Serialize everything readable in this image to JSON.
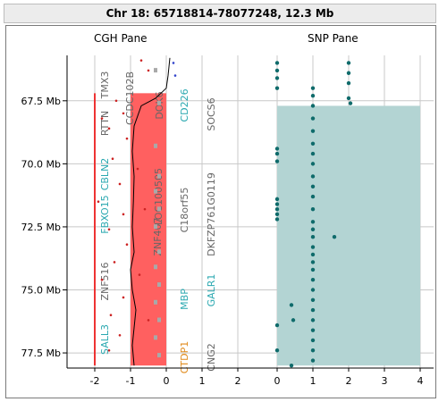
{
  "title": "Chr 18: 65718814-78077248, 12.3 Mb",
  "panes": {
    "cgh_label": "CGH Pane",
    "snp_label": "SNP Pane"
  },
  "y_axis": {
    "ticks": [
      "67.5 Mb",
      "70.0 Mb",
      "72.5 Mb",
      "75.0 Mb",
      "77.5 Mb"
    ]
  },
  "x_axis": {
    "cgh_ticks": [
      "-2",
      "-1",
      "0",
      "1",
      "2"
    ],
    "snp_ticks": [
      "0",
      "1",
      "2",
      "3",
      "4"
    ]
  },
  "genes": [
    {
      "label": "TMX3",
      "color": "#666666"
    },
    {
      "label": "RTTN",
      "color": "#666666"
    },
    {
      "label": "CCDC102B",
      "color": "#666666"
    },
    {
      "label": "DOK6",
      "color": "#666666"
    },
    {
      "label": "CD226",
      "color": "#2aa8b0"
    },
    {
      "label": "SOCS6",
      "color": "#666666"
    },
    {
      "label": "CBLN2",
      "color": "#2aa8b0"
    },
    {
      "label": "FBXO15",
      "color": "#2aa8b0"
    },
    {
      "label": "ZNF407",
      "color": "#666666"
    },
    {
      "label": "LOC100505",
      "color": "#666666"
    },
    {
      "label": "C18orf55",
      "color": "#666666"
    },
    {
      "label": "DKFZP761G0119",
      "color": "#666666"
    },
    {
      "label": "ZNF516",
      "color": "#666666"
    },
    {
      "label": "MBP",
      "color": "#2aa8b0"
    },
    {
      "label": "GALR1",
      "color": "#2aa8b0"
    },
    {
      "label": "SALL3",
      "color": "#2aa8b0"
    },
    {
      "label": "CTDP1",
      "color": "#e08a1a"
    },
    {
      "label": "CNG2",
      "color": "#666666"
    }
  ],
  "colors": {
    "cgh_region": "#ff6060",
    "cgh_line": "#ee3333",
    "snp_region": "#b3d4d3",
    "snp_point": "#0f6b6b",
    "grid": "#c8c8c8"
  },
  "chart_data": [
    {
      "type": "scatter",
      "panel": "CGH",
      "ylabel": "",
      "xlabel": "",
      "xlim": [
        -2.5,
        3.5
      ],
      "ylim": [
        65.7,
        78.1
      ],
      "region": {
        "x_from": -1.0,
        "x_to": 0.0,
        "y_from": 67.2,
        "y_to": 78.0
      },
      "vertical_line": {
        "x": -2.0,
        "y_from": 67.2,
        "y_to": 78.0
      },
      "log_ratio_profile": [
        [
          0.1,
          65.8
        ],
        [
          0.05,
          66.5
        ],
        [
          0.0,
          67.0
        ],
        [
          -0.3,
          67.4
        ],
        [
          -0.7,
          67.7
        ],
        [
          -0.9,
          68.5
        ],
        [
          -0.95,
          69.5
        ],
        [
          -0.9,
          70.5
        ],
        [
          -0.92,
          71.5
        ],
        [
          -0.95,
          72.5
        ],
        [
          -0.9,
          73.5
        ],
        [
          -1.0,
          74.2
        ],
        [
          -0.95,
          75.0
        ],
        [
          -0.85,
          75.8
        ],
        [
          -0.9,
          76.5
        ],
        [
          -0.95,
          77.2
        ],
        [
          -0.9,
          78.0
        ]
      ],
      "points": [
        [
          -0.7,
          65.9
        ],
        [
          -0.5,
          66.3
        ],
        [
          0.2,
          66.0
        ],
        [
          0.25,
          66.5
        ],
        [
          -1.4,
          67.5
        ],
        [
          -1.2,
          68.0
        ],
        [
          -1.6,
          68.6
        ],
        [
          -1.8,
          68.2
        ],
        [
          -1.1,
          69.0
        ],
        [
          -1.5,
          69.8
        ],
        [
          -1.3,
          70.8
        ],
        [
          -1.9,
          71.5
        ],
        [
          -1.2,
          72.0
        ],
        [
          -1.6,
          72.6
        ],
        [
          -1.1,
          73.2
        ],
        [
          -1.45,
          73.9
        ],
        [
          -1.8,
          74.6
        ],
        [
          -1.2,
          75.3
        ],
        [
          -1.55,
          76.0
        ],
        [
          -1.3,
          76.8
        ],
        [
          -1.6,
          77.4
        ],
        [
          -0.8,
          70.2
        ],
        [
          -0.6,
          71.8
        ],
        [
          -0.75,
          74.4
        ],
        [
          -0.5,
          76.2
        ]
      ]
    },
    {
      "type": "scatter",
      "panel": "SNP",
      "ylabel": "",
      "xlabel": "",
      "xlim": [
        0,
        4
      ],
      "ylim": [
        65.7,
        78.1
      ],
      "region": {
        "x_from": 0.0,
        "x_to": 4.0,
        "y_from": 67.7,
        "y_to": 78.0
      },
      "points": [
        [
          0,
          66.0
        ],
        [
          0,
          66.3
        ],
        [
          0,
          66.6
        ],
        [
          0,
          67.0
        ],
        [
          0,
          69.4
        ],
        [
          0,
          69.6
        ],
        [
          0,
          69.9
        ],
        [
          0,
          71.4
        ],
        [
          0,
          71.6
        ],
        [
          0,
          71.8
        ],
        [
          0,
          72.0
        ],
        [
          0,
          72.2
        ],
        [
          0,
          76.4
        ],
        [
          0,
          77.4
        ],
        [
          1,
          67.0
        ],
        [
          1,
          67.3
        ],
        [
          1,
          67.7
        ],
        [
          1,
          68.2
        ],
        [
          1,
          68.7
        ],
        [
          1,
          69.2
        ],
        [
          1,
          69.6
        ],
        [
          1,
          70.0
        ],
        [
          1,
          70.5
        ],
        [
          1,
          70.9
        ],
        [
          1,
          71.3
        ],
        [
          1,
          71.8
        ],
        [
          1,
          72.3
        ],
        [
          1,
          72.6
        ],
        [
          1,
          72.9
        ],
        [
          1,
          73.3
        ],
        [
          1,
          73.6
        ],
        [
          1,
          73.9
        ],
        [
          1,
          74.2
        ],
        [
          1,
          74.6
        ],
        [
          1,
          75.0
        ],
        [
          1,
          75.4
        ],
        [
          1,
          75.8
        ],
        [
          1,
          76.2
        ],
        [
          1,
          76.6
        ],
        [
          1,
          77.0
        ],
        [
          1,
          77.4
        ],
        [
          1,
          77.8
        ],
        [
          2,
          66.0
        ],
        [
          2,
          66.4
        ],
        [
          2,
          66.8
        ],
        [
          2,
          67.4
        ],
        [
          2.05,
          67.6
        ],
        [
          1.6,
          72.9
        ],
        [
          0.4,
          75.6
        ],
        [
          0.45,
          76.2
        ],
        [
          0.4,
          78.0
        ]
      ]
    }
  ]
}
